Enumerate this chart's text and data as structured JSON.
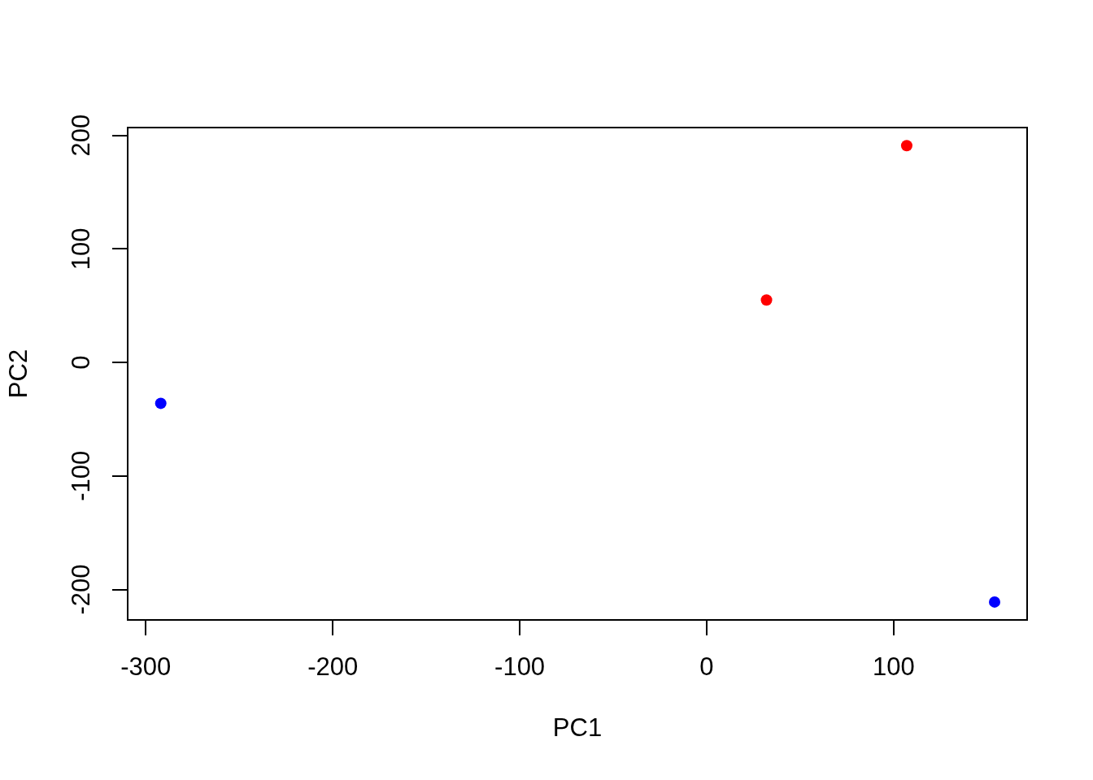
{
  "chart_data": {
    "type": "scatter",
    "xlabel": "PC1",
    "ylabel": "PC2",
    "series": [
      {
        "color": "#0000ff",
        "x": [
          -292,
          154
        ],
        "values": [
          -36,
          -211
        ]
      },
      {
        "color": "#ff0000",
        "x": [
          32,
          107
        ],
        "values": [
          55,
          191
        ]
      }
    ],
    "xlim": [
      -309.7,
      171.4
    ],
    "ylim": [
      -226.8,
      206.9
    ],
    "xticks": [
      -300,
      -200,
      -100,
      0,
      100
    ],
    "yticks": [
      -200,
      -100,
      0,
      100,
      200
    ],
    "grid": false,
    "legend": false,
    "marker": "circle"
  }
}
